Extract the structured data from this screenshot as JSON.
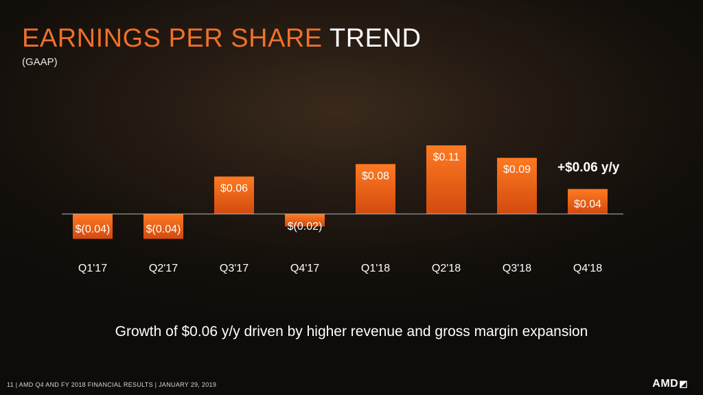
{
  "title": {
    "accent": "EARNINGS PER SHARE",
    "plain": "TREND"
  },
  "subtitle": "(GAAP)",
  "annotation": "+$0.06 y/y",
  "bottom_note": "Growth of $0.06 y/y driven by higher revenue and gross margin expansion",
  "footer": "11  |  AMD Q4 AND FY 2018 FINANCIAL RESULTS  |  JANUARY 29, 2019",
  "logo": {
    "text": "AMD",
    "mark": "◩"
  },
  "colors": {
    "bar_top": "#ff7a22",
    "bar_bottom": "#d24a0f",
    "accent": "#f0702a",
    "axis": "#b8b8b8"
  },
  "chart_data": {
    "type": "bar",
    "categories": [
      "Q1'17",
      "Q2'17",
      "Q3'17",
      "Q4'17",
      "Q1'18",
      "Q2'18",
      "Q3'18",
      "Q4'18"
    ],
    "values": [
      -0.04,
      -0.04,
      0.06,
      -0.02,
      0.08,
      0.11,
      0.09,
      0.04
    ],
    "data_labels": [
      "$(0.04)",
      "$(0.04)",
      "$0.06",
      "$(0.02)",
      "$0.08",
      "$0.11",
      "$0.09",
      "$0.04"
    ],
    "title": "EARNINGS PER SHARE TREND",
    "subtitle": "(GAAP)",
    "xlabel": "",
    "ylabel": "",
    "ylim": [
      -0.04,
      0.11
    ],
    "grid": false,
    "legend": "none"
  }
}
